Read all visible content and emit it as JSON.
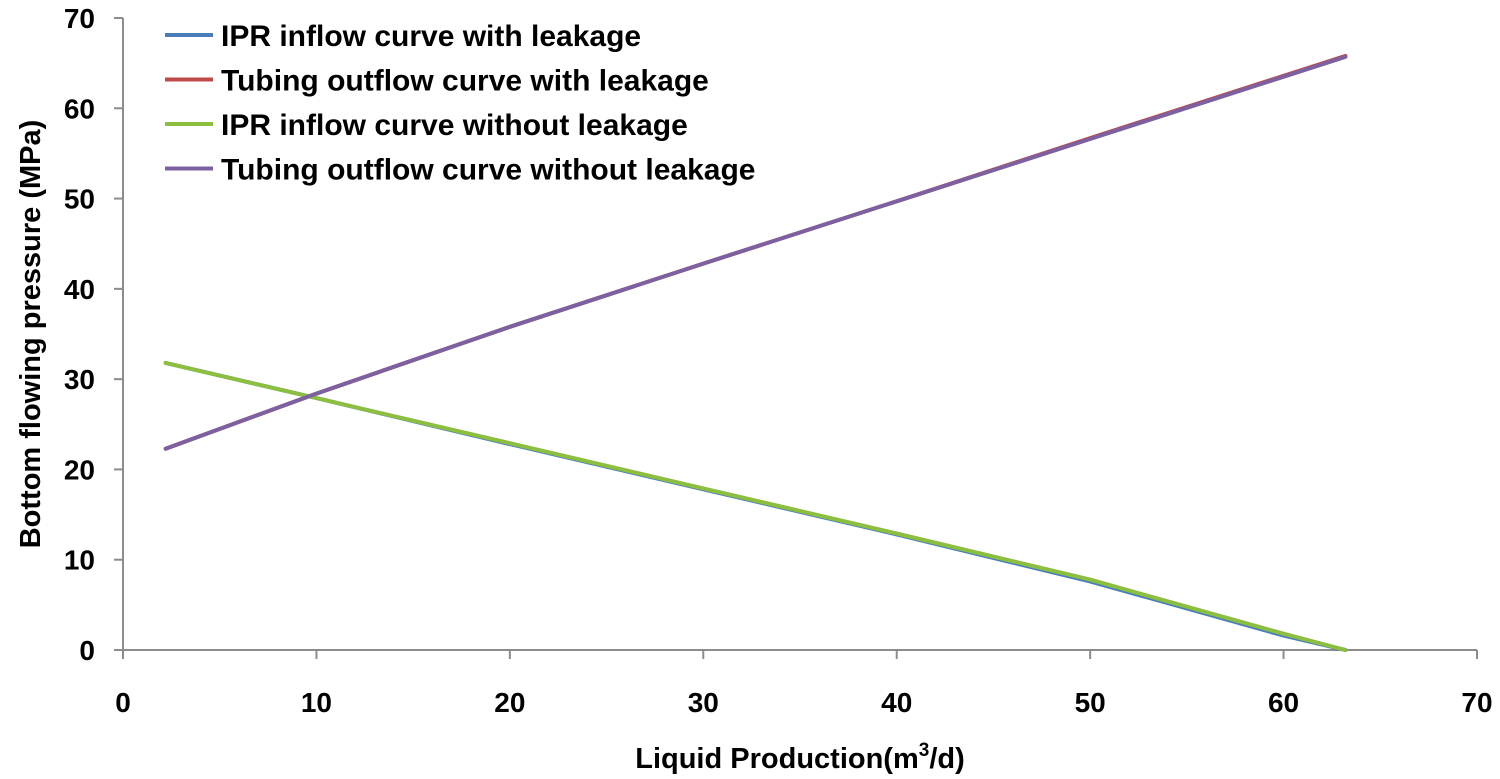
{
  "chart_data": {
    "type": "line",
    "title": "",
    "xlabel": "Liquid Production(m",
    "xlabel_sup": "3",
    "xlabel_tail": "/d)",
    "ylabel": "Bottom flowing pressure (MPa)",
    "xlim": [
      0,
      70
    ],
    "ylim": [
      0,
      70
    ],
    "x_ticks": [
      "0",
      "10",
      "20",
      "30",
      "40",
      "50",
      "60",
      "70"
    ],
    "y_ticks": [
      "0",
      "10",
      "20",
      "30",
      "40",
      "50",
      "60",
      "70"
    ],
    "grid": false,
    "legend_position": "top-left",
    "series": [
      {
        "name": "IPR inflow curve with leakage",
        "color": "#4a7ebb",
        "x": [
          2.2,
          10,
          20,
          30,
          40,
          50,
          55,
          60,
          63.2
        ],
        "y": [
          31.8,
          27.9,
          22.8,
          17.8,
          12.8,
          7.6,
          4.6,
          1.6,
          0
        ]
      },
      {
        "name": "Tubing outflow curve with leakage",
        "color": "#be4b48",
        "x": [
          2.2,
          10,
          20,
          30,
          40,
          50,
          63.2
        ],
        "y": [
          22.3,
          28.4,
          35.8,
          42.8,
          49.7,
          56.7,
          65.8
        ]
      },
      {
        "name": "IPR inflow curve without leakage",
        "color": "#8cbf3f",
        "x": [
          2.2,
          10,
          20,
          30,
          40,
          50,
          55,
          60,
          63.2
        ],
        "y": [
          31.8,
          27.9,
          22.9,
          17.9,
          12.9,
          7.8,
          4.8,
          1.8,
          0
        ]
      },
      {
        "name": "Tubing outflow curve without leakage",
        "color": "#7d60a0",
        "x": [
          2.2,
          10,
          20,
          30,
          40,
          50,
          63.2
        ],
        "y": [
          22.3,
          28.4,
          35.8,
          42.8,
          49.7,
          56.6,
          65.7
        ]
      }
    ]
  }
}
